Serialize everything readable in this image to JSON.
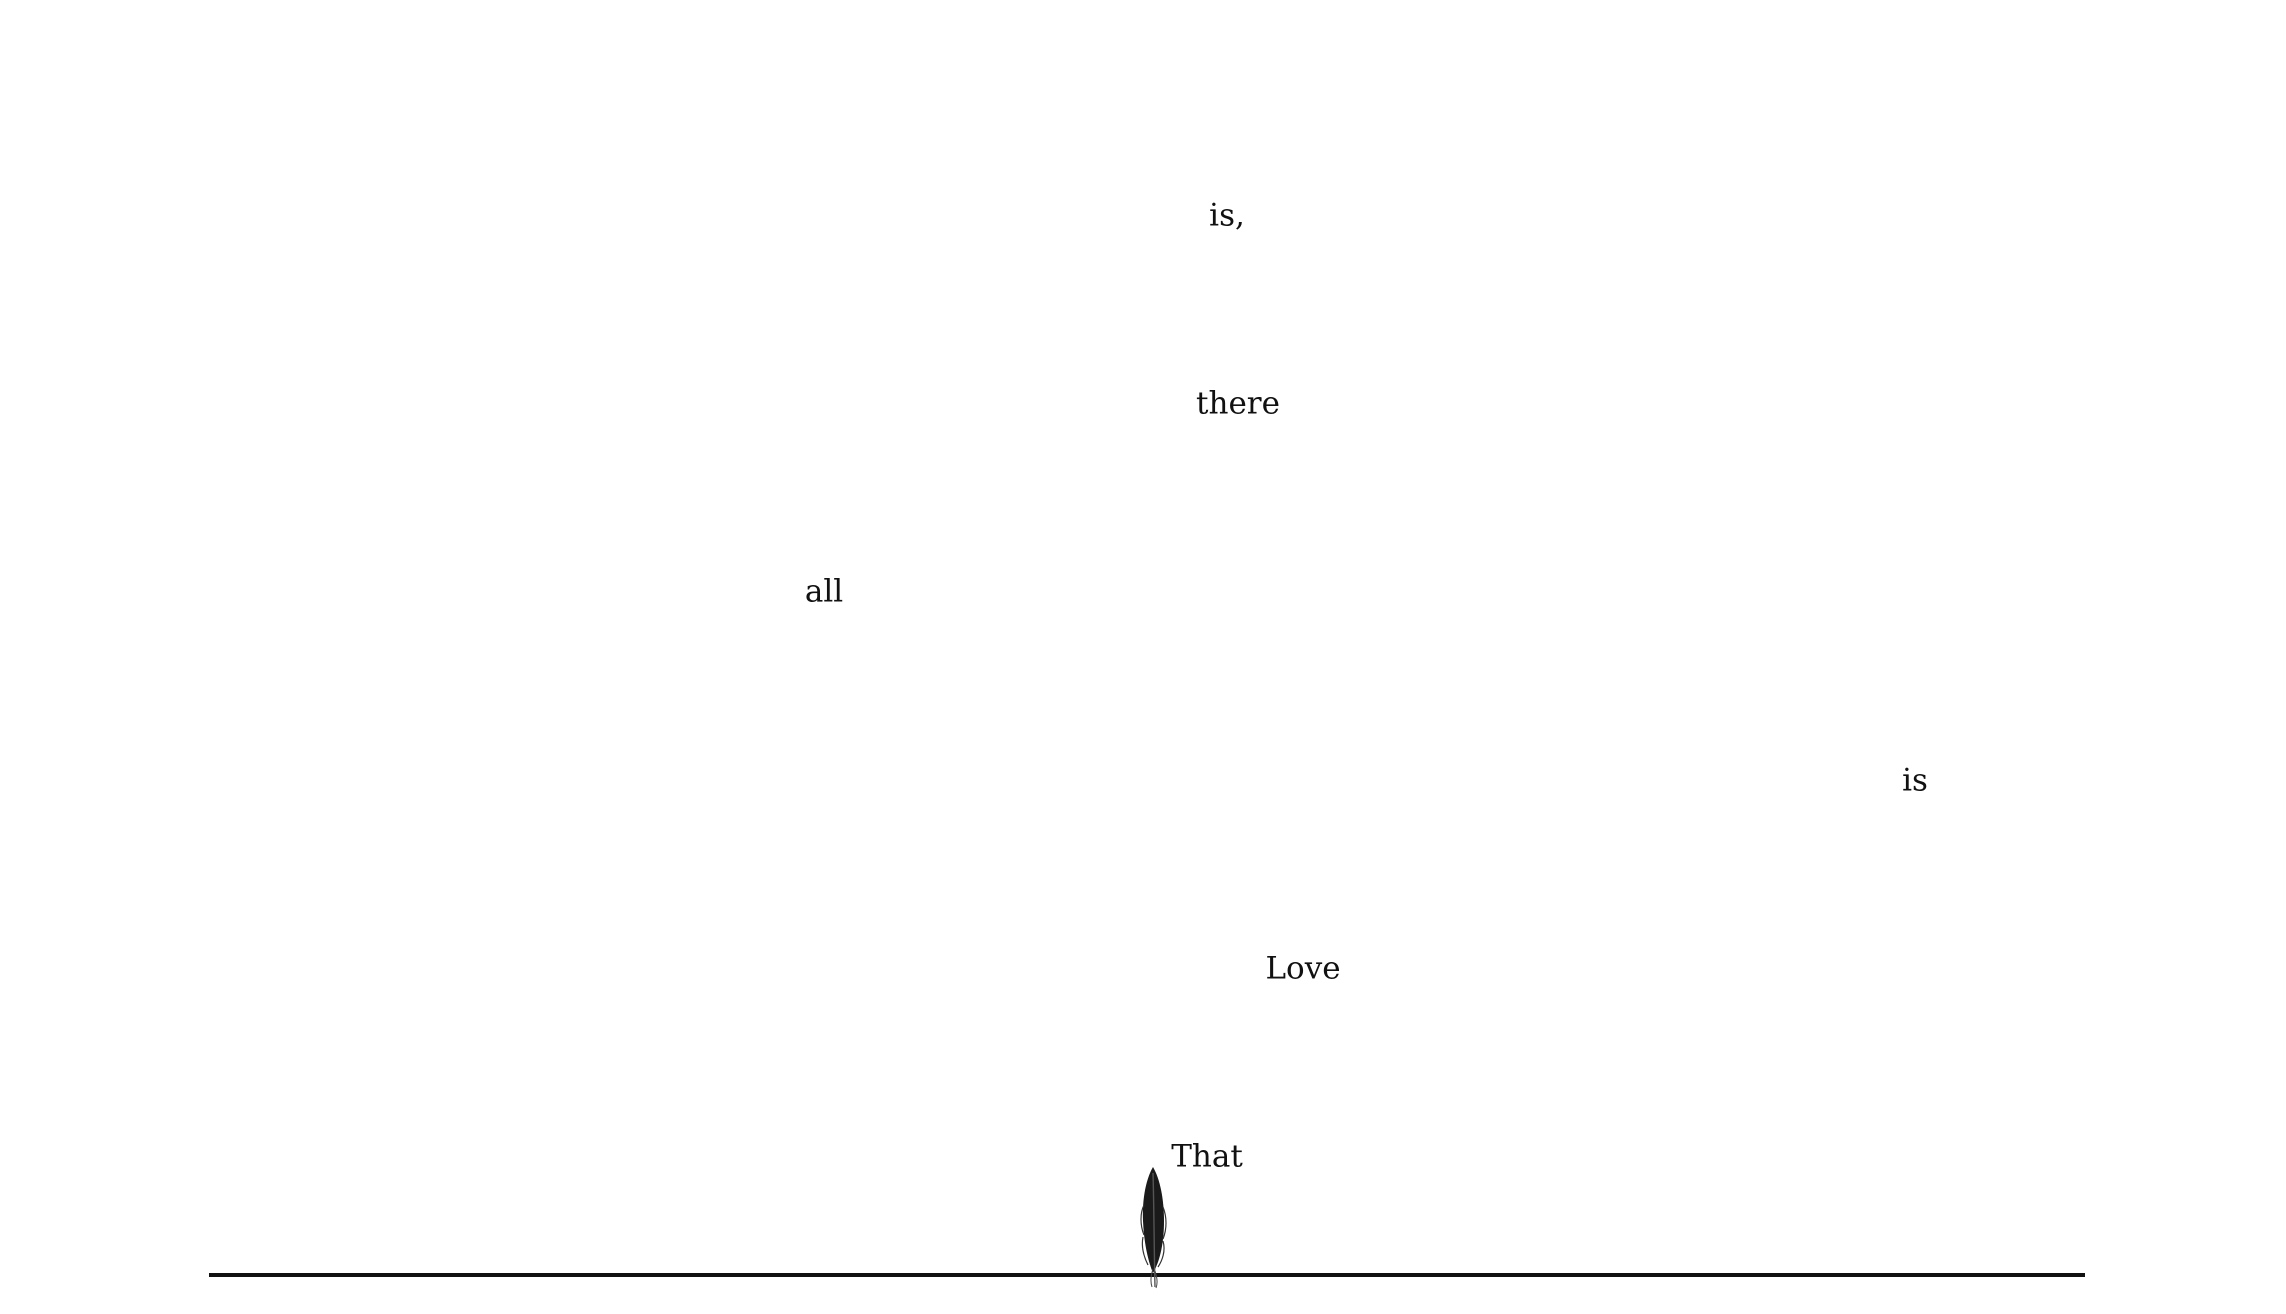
{
  "poem": {
    "words": [
      "is,",
      "there",
      "all",
      "is",
      "Love",
      "That"
    ]
  },
  "icons": {
    "feather": "feather-icon"
  },
  "colors": {
    "background": "#ffffff",
    "ink": "#111111"
  }
}
